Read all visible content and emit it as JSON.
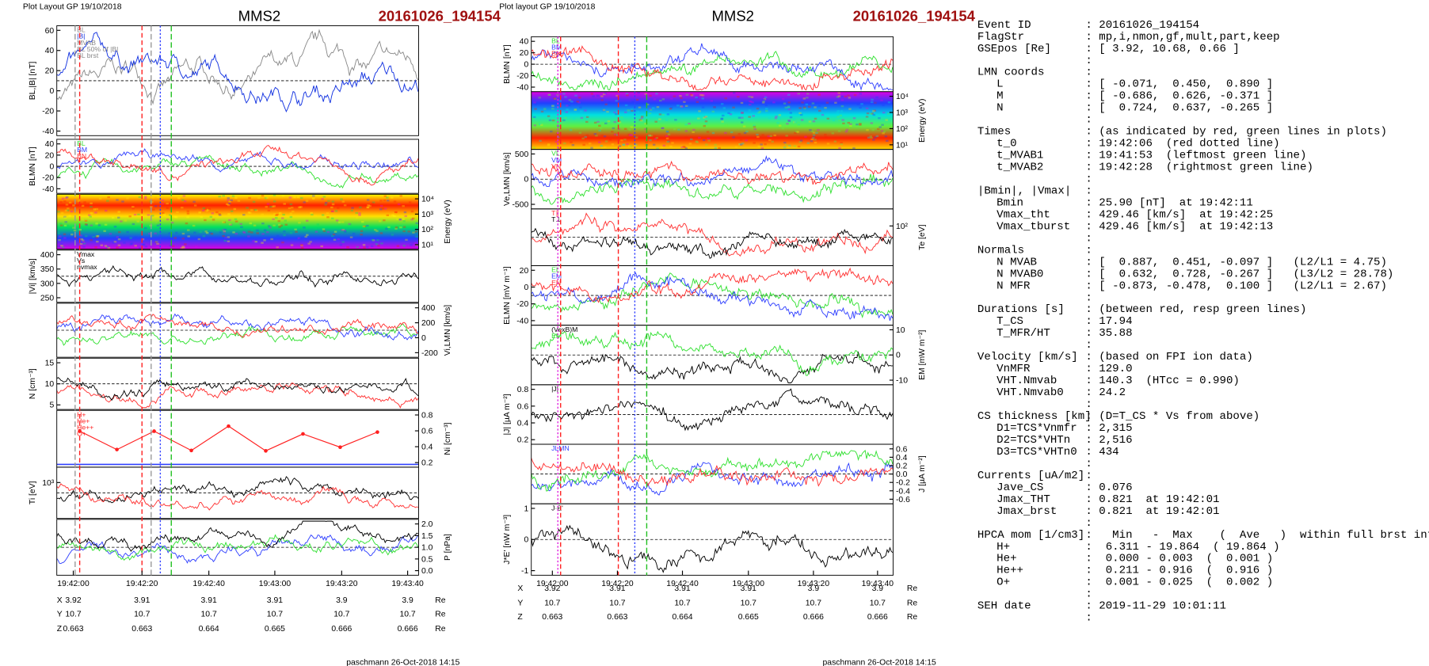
{
  "plots": [
    {
      "header": "Plot Layout GP 19/10/2018",
      "title": "MMS2",
      "event": "20161026_194154",
      "panels": [
        {
          "ylabel": "BL,|B| [nT]",
          "side": "left",
          "kind": "lines",
          "ticks": [
            "60",
            "40",
            "20",
            "0",
            "-20",
            "-40"
          ],
          "colors": [
            "#888888",
            "#1030e0"
          ],
          "legend": [
            "BL",
            "|B|",
            "MVAB",
            "BL 50% of |B|",
            "BL brst"
          ]
        },
        {
          "ylabel": "BLMN [nT]",
          "side": "left",
          "kind": "lines",
          "ticks": [
            "40",
            "20",
            "0",
            "-20",
            "-40"
          ],
          "colors": [
            "#30e030",
            "#3040ff",
            "#ff3030"
          ],
          "legend": [
            "BL",
            "BM",
            "BN"
          ]
        },
        {
          "ylabel": "Energy (eV)",
          "side": "right",
          "kind": "spectrogram",
          "ticks": [
            "10⁴",
            "10³",
            "10²",
            "10¹"
          ],
          "colors": [
            "#ffff00",
            "#ff2000",
            "#ffe000",
            "#00e060",
            "#2040ff",
            "#e000e0"
          ]
        },
        {
          "ylabel": "|Vi| [km/s]",
          "side": "left",
          "kind": "lines",
          "ticks": [
            "400",
            "350",
            "300",
            "250"
          ],
          "colors": [
            "#000000"
          ],
          "legend": [
            "Vmax",
            "Vs",
            "nvmax"
          ]
        },
        {
          "ylabel": "Vi,LMN [km/s]",
          "side": "right",
          "kind": "lines",
          "ticks": [
            "400",
            "200",
            "0",
            "-200"
          ],
          "colors": [
            "#30e030",
            "#3040ff",
            "#ff3030"
          ]
        },
        {
          "ylabel": "N [cm⁻³]",
          "side": "left",
          "kind": "lines",
          "ticks": [
            "15",
            "10",
            "5"
          ],
          "colors": [
            "#ff3030",
            "#000000"
          ]
        },
        {
          "ylabel": "Ni [cm⁻³]",
          "side": "right",
          "kind": "points",
          "ticks": [
            "0.8",
            "0.6",
            "0.4",
            "0.2"
          ],
          "colors": [
            "#ff2020"
          ],
          "legend": [
            "H+",
            "He+",
            "He++",
            "O+"
          ]
        },
        {
          "ylabel": "Ti [eV]",
          "side": "left",
          "kind": "lines",
          "ticks": [
            "10³"
          ],
          "colors": [
            "#000000",
            "#ff3030"
          ]
        },
        {
          "ylabel": "P [nPa]",
          "side": "right",
          "kind": "lines",
          "ticks": [
            "2.0",
            "1.5",
            "1.0",
            "0.5",
            "0.0"
          ],
          "colors": [
            "#3040ff",
            "#30e030",
            "#000000"
          ]
        }
      ],
      "xticks": [
        "19:42:00",
        "19:42:20",
        "19:42:40",
        "19:43:00",
        "19:43:20",
        "19:43:40"
      ],
      "ephem": [
        {
          "name": "X",
          "values": [
            "3.92",
            "3.91",
            "3.91",
            "3.91",
            "3.9",
            "3.9"
          ],
          "unit": "Re"
        },
        {
          "name": "Y",
          "values": [
            "10.7",
            "10.7",
            "10.7",
            "10.7",
            "10.7",
            "10.7"
          ],
          "unit": "Re"
        },
        {
          "name": "Z",
          "values": [
            "0.663",
            "0.663",
            "0.664",
            "0.665",
            "0.666",
            "0.666"
          ],
          "unit": "Re"
        }
      ],
      "footer": "paschmann 26-Oct-2018 14:15"
    },
    {
      "header": "Plot layout GP 19/10/2018",
      "title": "MMS2",
      "event": "20161026_194154",
      "panels": [
        {
          "ylabel": "BLMN [nT]",
          "side": "left",
          "kind": "lines",
          "ticks": [
            "40",
            "20",
            "0",
            "-20",
            "-40"
          ],
          "colors": [
            "#30e030",
            "#3040ff",
            "#ff3030"
          ],
          "legend": [
            "BL",
            "BM",
            "BN"
          ]
        },
        {
          "ylabel": "Energy (eV)",
          "side": "right",
          "kind": "spectrogram",
          "ticks": [
            "10⁴",
            "10³",
            "10²",
            "10¹"
          ],
          "colors": [
            "#e000e0",
            "#2040ff",
            "#00e0e0",
            "#60f040",
            "#ff2000",
            "#ffe000"
          ]
        },
        {
          "ylabel": "Ve,LMN [km/s]",
          "side": "left",
          "kind": "lines",
          "ticks": [
            "500",
            "0",
            "-500"
          ],
          "colors": [
            "#30e030",
            "#3040ff",
            "#ff3030"
          ],
          "legend": [
            "VL",
            "VM",
            "VN"
          ]
        },
        {
          "ylabel": "Te [eV]",
          "side": "right",
          "kind": "lines",
          "ticks": [
            "10²"
          ],
          "colors": [
            "#ff3030",
            "#000000"
          ],
          "legend": [
            "T∥",
            "T⊥"
          ]
        },
        {
          "ylabel": "ELMN [mV m⁻¹]",
          "side": "left",
          "kind": "lines",
          "ticks": [
            "20",
            "0",
            "-20",
            "-40"
          ],
          "colors": [
            "#30e030",
            "#3040ff",
            "#ff3030"
          ],
          "legend": [
            "EL",
            "EM",
            "EN"
          ]
        },
        {
          "ylabel": "EM [mW m⁻²]",
          "side": "right",
          "kind": "lines",
          "ticks": [
            "10",
            "0",
            "-10"
          ],
          "colors": [
            "#000000",
            "#30e030"
          ],
          "legend": [
            "(VexB)M",
            "EM"
          ]
        },
        {
          "ylabel": "|J| [µA m⁻²]",
          "side": "left",
          "kind": "lines",
          "ticks": [
            "0.8",
            "0.6",
            "0.4",
            "0.2"
          ],
          "colors": [
            "#000000"
          ],
          "legend": [
            "|J|"
          ]
        },
        {
          "ylabel": "J [µA m⁻²]",
          "side": "right",
          "kind": "lines",
          "ticks": [
            "0.6",
            "0.4",
            "0.2",
            "0.0",
            "-0.2",
            "-0.4",
            "-0.6"
          ],
          "colors": [
            "#3040ff",
            "#30e030",
            "#ff3030"
          ],
          "legend": [
            "JLMN"
          ]
        },
        {
          "ylabel": "J*E' [nW m⁻³]",
          "side": "left",
          "kind": "lines",
          "ticks": [
            "1",
            "0",
            "-1"
          ],
          "colors": [
            "#000000"
          ],
          "legend": [
            "J·E'"
          ]
        }
      ],
      "xticks": [
        "19:42:00",
        "19:42:20",
        "19:42:40",
        "19:43:00",
        "19:43:20",
        "19:43:40"
      ],
      "ephem": [
        {
          "name": "X",
          "values": [
            "3.92",
            "3.91",
            "3.91",
            "3.91",
            "3.9",
            "3.9"
          ],
          "unit": "Re"
        },
        {
          "name": "Y",
          "values": [
            "10.7",
            "10.7",
            "10.7",
            "10.7",
            "10.7",
            "10.7"
          ],
          "unit": "Re"
        },
        {
          "name": "Z",
          "values": [
            "0.663",
            "0.663",
            "0.664",
            "0.665",
            "0.666",
            "0.666"
          ],
          "unit": "Re"
        }
      ],
      "footer": "paschmann 26-Oct-2018 14:15"
    }
  ],
  "summary": [
    {
      "lines": [
        {
          "key": "Event ID",
          "value": ": 20161026_194154"
        },
        {
          "key": "FlagStr",
          "value": ": mp,i,nmon,gf,mult,part,keep"
        },
        {
          "key": "GSEpos [Re]",
          "value": ": [ 3.92, 10.68, 0.66 ]"
        }
      ],
      "sub": [],
      "sep": ":"
    },
    {
      "lines": [
        {
          "key": "LMN coords",
          "value": ":"
        }
      ],
      "sub": [
        {
          "key": "L",
          "value": ": [ -0.071,  0.450,  0.890 ]"
        },
        {
          "key": "M",
          "value": ": [ -0.686,  0.626, -0.371 ]"
        },
        {
          "key": "N",
          "value": ": [  0.724,  0.637, -0.265 ]"
        }
      ],
      "sep": ":"
    },
    {
      "lines": [
        {
          "key": "Times",
          "value": ": (as indicated by red, green lines in plots)"
        }
      ],
      "sub": [
        {
          "key": "t_0",
          "value": ": 19:42:06  (red dotted line)"
        },
        {
          "key": "t_MVAB1",
          "value": ": 19:41:53  (leftmost green line)"
        },
        {
          "key": "t_MVAB2",
          "value": ": 19:42:28  (rightmost green line)"
        }
      ],
      "sep": ":"
    },
    {
      "lines": [
        {
          "key": "|Bmin|, |Vmax|",
          "value": ":"
        }
      ],
      "sub": [
        {
          "key": "Bmin",
          "value": ": 25.90 [nT]  at 19:42:11"
        },
        {
          "key": "Vmax_tht",
          "value": ": 429.46 [km/s]  at 19:42:25"
        },
        {
          "key": "Vmax_tburst",
          "value": ": 429.46 [km/s]  at 19:42:13"
        }
      ],
      "sep": ":"
    },
    {
      "lines": [
        {
          "key": "Normals",
          "value": ":"
        }
      ],
      "sub": [
        {
          "key": "N MVAB",
          "value": ": [  0.887,  0.451, -0.097 ]   (L2/L1 = 4.75)"
        },
        {
          "key": "N MVAB0",
          "value": ": [  0.632,  0.728, -0.267 ]   (L3/L2 = 28.78)"
        },
        {
          "key": "N MFR",
          "value": ": [ -0.873, -0.478,  0.100 ]   (L2/L1 = 2.67)"
        }
      ],
      "sep": ":"
    },
    {
      "lines": [
        {
          "key": "Durations [s]",
          "value": ": (between red, resp green lines)"
        }
      ],
      "sub": [
        {
          "key": "T_CS",
          "value": ": 17.94"
        },
        {
          "key": "T_MFR/HT",
          "value": ": 35.88"
        }
      ],
      "sep": ":"
    },
    {
      "lines": [
        {
          "key": "Velocity [km/s]",
          "value": ": (based on FPI ion data)"
        }
      ],
      "sub": [
        {
          "key": "VnMFR",
          "value": ": 129.0"
        },
        {
          "key": "VHT.Nmvab",
          "value": ": 140.3  (HTcc = 0.990)"
        },
        {
          "key": "VHT.Nmvab0",
          "value": ": 24.2"
        }
      ],
      "sep": ":"
    },
    {
      "lines": [
        {
          "key": "CS thickness [km]",
          "value": ": (D=T_CS * Vs from above)"
        }
      ],
      "sub": [
        {
          "key": "D1=TCS*Vnmfr",
          "value": ": 2,315"
        },
        {
          "key": "D2=TCS*VHTn",
          "value": ": 2,516"
        },
        {
          "key": "D3=TCS*VHTn0",
          "value": ": 434"
        }
      ],
      "sep": ":"
    },
    {
      "lines": [
        {
          "key": "Currents [uA/m2]",
          "value": ":"
        }
      ],
      "sub": [
        {
          "key": "Jave_CS",
          "value": ": 0.076"
        },
        {
          "key": "Jmax_THT",
          "value": ": 0.821  at 19:42:01"
        },
        {
          "key": "Jmax_brst",
          "value": ": 0.821  at 19:42:01"
        }
      ],
      "sep": ":"
    },
    {
      "lines": [
        {
          "key": "HPCA mom [1/cm3]",
          "value": ":   Min   -  Max    (  Ave   )  within full brst int"
        }
      ],
      "sub": [
        {
          "key": "H+",
          "value": ":  6.311 - 19.864  ( 19.864 )"
        },
        {
          "key": "He+",
          "value": ":  0.000 - 0.003  (  0.001 )"
        },
        {
          "key": "He++",
          "value": ":  0.211 - 0.916  (  0.916 )"
        },
        {
          "key": "O+",
          "value": ":  0.001 - 0.025  (  0.002 )"
        }
      ],
      "sep": ":"
    },
    {
      "lines": [
        {
          "key": "SEH date",
          "value": ": 2019-11-29 10:01:11"
        }
      ],
      "sub": [],
      "sep": ":"
    }
  ]
}
